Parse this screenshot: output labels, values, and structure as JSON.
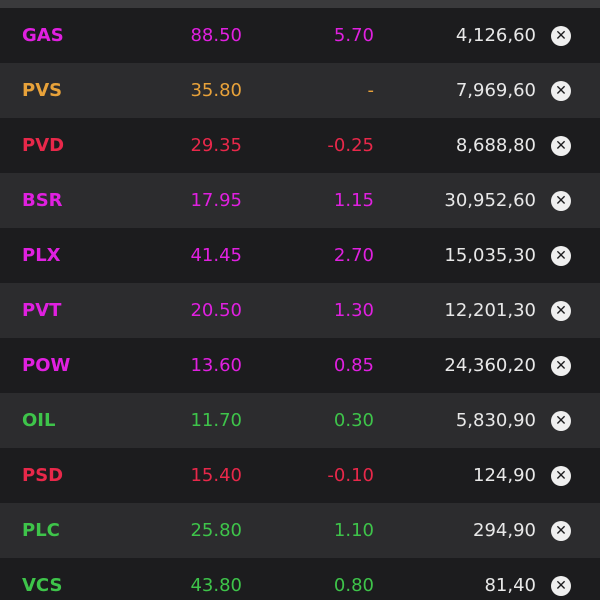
{
  "colors": {
    "up": "#e020e0",
    "ref": "#e8a23a",
    "down": "#e8284a",
    "gain": "#3ec44a"
  },
  "rows": [
    {
      "symbol": "GAS",
      "price": "88.50",
      "change": "5.70",
      "volume": "4,126,60",
      "status": "up"
    },
    {
      "symbol": "PVS",
      "price": "35.80",
      "change": "-",
      "volume": "7,969,60",
      "status": "ref"
    },
    {
      "symbol": "PVD",
      "price": "29.35",
      "change": "-0.25",
      "volume": "8,688,80",
      "status": "down"
    },
    {
      "symbol": "BSR",
      "price": "17.95",
      "change": "1.15",
      "volume": "30,952,60",
      "status": "up"
    },
    {
      "symbol": "PLX",
      "price": "41.45",
      "change": "2.70",
      "volume": "15,035,30",
      "status": "up"
    },
    {
      "symbol": "PVT",
      "price": "20.50",
      "change": "1.30",
      "volume": "12,201,30",
      "status": "up"
    },
    {
      "symbol": "POW",
      "price": "13.60",
      "change": "0.85",
      "volume": "24,360,20",
      "status": "up"
    },
    {
      "symbol": "OIL",
      "price": "11.70",
      "change": "0.30",
      "volume": "5,830,90",
      "status": "gain"
    },
    {
      "symbol": "PSD",
      "price": "15.40",
      "change": "-0.10",
      "volume": "124,90",
      "status": "down"
    },
    {
      "symbol": "PLC",
      "price": "25.80",
      "change": "1.10",
      "volume": "294,90",
      "status": "gain"
    },
    {
      "symbol": "VCS",
      "price": "43.80",
      "change": "0.80",
      "volume": "81,40",
      "status": "gain"
    }
  ]
}
